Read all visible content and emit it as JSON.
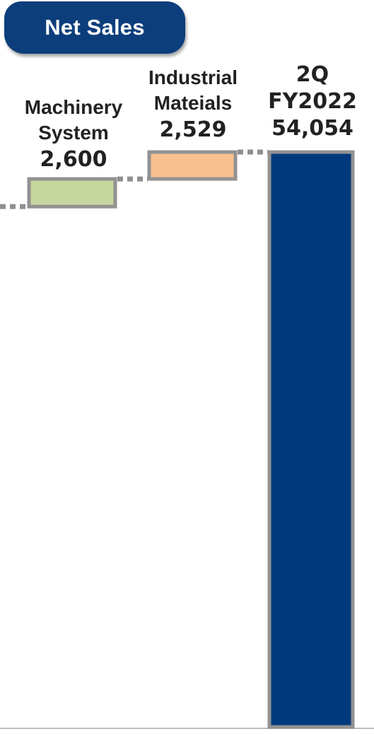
{
  "header": {
    "badge_label": "Net Sales"
  },
  "chart_data": {
    "type": "bar",
    "subtype": "waterfall",
    "title": "Net Sales",
    "categories": [
      "Machinery System",
      "Industrial Mateials",
      "2Q FY2022"
    ],
    "label_lines": [
      [
        "Machinery",
        "System"
      ],
      [
        "Industrial",
        "Mateials"
      ],
      [
        "2Q",
        "FY2022"
      ]
    ],
    "value_labels": [
      "2,600",
      "2,529",
      "54,054"
    ],
    "values": [
      2600,
      2529,
      54054
    ],
    "kinds": [
      "increase",
      "increase",
      "total"
    ],
    "colors": {
      "increase_1": "#c5d79d",
      "increase_2": "#f9c08f",
      "total": "#003a7d",
      "border": "#929292",
      "connector": "#8f8f8f"
    }
  }
}
